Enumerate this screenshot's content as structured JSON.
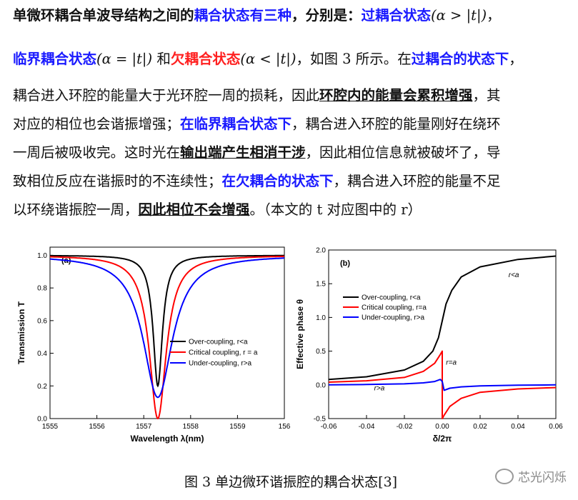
{
  "text": {
    "l1_a": "单微环耦合单波导结构之间的",
    "l1_b": "耦合状态有三种",
    "l1_c": "，分别是：",
    "l1_d": "过耦合状态",
    "l1_e": "(α > |t|)",
    "l1_f": "，",
    "l2_a": "临界耦合状态",
    "l2_b": "(α = |t|)",
    "l2_c": "和",
    "l2_d": "欠耦合状态",
    "l2_e": "(α < |t|)",
    "l2_f": "，如图 3 所示。在",
    "l2_g": "过耦合的状态下",
    "l2_h": "，",
    "l3_a": "耦合进入环腔的能量大于光环腔一周的损耗，因此",
    "l3_b": "环腔内的能量会累积增强",
    "l3_c": "，其",
    "l4_a": "对应的相位也会谐振增强；",
    "l4_b": "在临界耦合状态下",
    "l4_c": "，耦合进入环腔的能量刚好在绕环",
    "l5_a": "一周后被吸收完。这时光在",
    "l5_b": "输出端产生相消干涉",
    "l5_c": "，因此相位信息就被破坏了，导",
    "l6_a": "致相位反应在谐振时的不连续性；",
    "l6_b": "在欠耦合的状态下",
    "l6_c": "，耦合进入环腔的能量不足",
    "l7_a": "以环绕谐振腔一周，",
    "l7_b": "因此相位不会增强",
    "l7_c": "。（本文的 t 对应图中的 r）"
  },
  "caption": "图 3  单边微环谐振腔的耦合状态[3]",
  "watermark": "芯光闪烁",
  "chart_data": [
    {
      "type": "line",
      "panel_label": "(a)",
      "xlabel": "Wavelength λ(nm)",
      "ylabel": "Transmission T",
      "xlim": [
        1555,
        1560
      ],
      "ylim": [
        0,
        1.05
      ],
      "x_ticks": [
        "1555",
        "1556",
        "1557",
        "1558",
        "1559",
        "156"
      ],
      "y_ticks": [
        "0.0",
        "0.2",
        "0.4",
        "0.6",
        "0.8",
        "1.0"
      ],
      "resonance_nm": 1557.3,
      "series": [
        {
          "name": "Over-coupling, r<a",
          "color": "#000000",
          "min": 0.2,
          "width_nm": 0.12
        },
        {
          "name": "Critical coupling, r = a",
          "color": "#ff0000",
          "min": 0.0,
          "width_nm": 0.22
        },
        {
          "name": "Under-coupling, r>a",
          "color": "#0000ff",
          "min": 0.13,
          "width_nm": 0.38
        }
      ],
      "legend_position": "lower-right"
    },
    {
      "type": "line",
      "panel_label": "(b)",
      "xlabel": "δ/2π",
      "ylabel": "Effective phase θ",
      "xlim": [
        -0.06,
        0.06
      ],
      "ylim": [
        -0.5,
        2.0
      ],
      "x_ticks": [
        "-0.06",
        "-0.04",
        "-0.02",
        "0.00",
        "0.02",
        "0.04",
        "0.06"
      ],
      "y_ticks": [
        "-0.5",
        "0.0",
        "0.5",
        "1.0",
        "1.5",
        "2.0"
      ],
      "series": [
        {
          "name": "Over-coupling, r<a",
          "color": "#000000",
          "points": [
            [
              -0.06,
              0.08
            ],
            [
              -0.04,
              0.12
            ],
            [
              -0.02,
              0.22
            ],
            [
              -0.01,
              0.35
            ],
            [
              -0.005,
              0.5
            ],
            [
              -0.002,
              0.7
            ],
            [
              0.0,
              0.95
            ],
            [
              0.002,
              1.2
            ],
            [
              0.005,
              1.4
            ],
            [
              0.01,
              1.6
            ],
            [
              0.02,
              1.75
            ],
            [
              0.04,
              1.86
            ],
            [
              0.06,
              1.91
            ]
          ]
        },
        {
          "name": "Critical coupling, r=a",
          "color": "#ff0000",
          "points": [
            [
              -0.06,
              0.04
            ],
            [
              -0.04,
              0.06
            ],
            [
              -0.02,
              0.11
            ],
            [
              -0.01,
              0.2
            ],
            [
              -0.004,
              0.32
            ],
            [
              -0.001,
              0.45
            ],
            [
              0.0,
              0.5
            ],
            [
              0.0,
              -0.5
            ],
            [
              0.001,
              -0.45
            ],
            [
              0.004,
              -0.32
            ],
            [
              0.01,
              -0.2
            ],
            [
              0.02,
              -0.11
            ],
            [
              0.04,
              -0.06
            ],
            [
              0.06,
              -0.04
            ]
          ]
        },
        {
          "name": "Under-coupling, r>a",
          "color": "#0000ff",
          "points": [
            [
              -0.06,
              0.0
            ],
            [
              -0.04,
              0.005
            ],
            [
              -0.02,
              0.015
            ],
            [
              -0.01,
              0.03
            ],
            [
              -0.004,
              0.05
            ],
            [
              -0.001,
              0.08
            ],
            [
              0.0,
              0.05
            ],
            [
              0.001,
              -0.08
            ],
            [
              0.004,
              -0.05
            ],
            [
              0.01,
              -0.03
            ],
            [
              0.02,
              -0.015
            ],
            [
              0.04,
              -0.005
            ],
            [
              0.06,
              0.0
            ]
          ]
        }
      ],
      "annotations": [
        "r<a",
        "r=a",
        "r>a"
      ],
      "legend_position": "upper-left"
    }
  ]
}
